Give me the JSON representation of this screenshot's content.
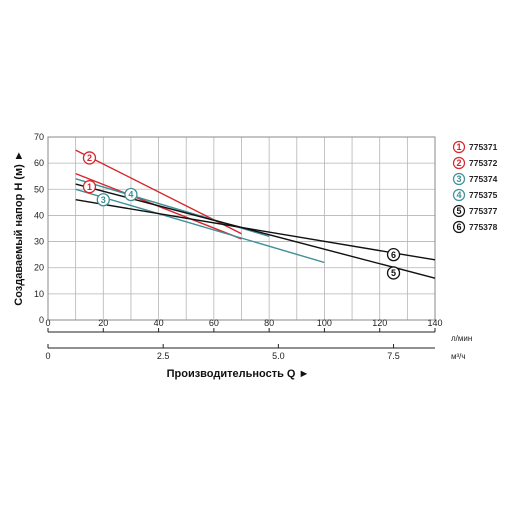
{
  "chart_data": {
    "type": "line",
    "title": "",
    "ylabel": "Создаваемый напор H (м) ►",
    "xlabel": "Производительность Q ►",
    "ylim": [
      0,
      70
    ],
    "xlim": [
      0,
      140
    ],
    "y_ticks": [
      "0",
      "10",
      "20",
      "30",
      "40",
      "50",
      "60",
      "70"
    ],
    "x_ticks_lmin": [
      "0",
      "20",
      "40",
      "60",
      "80",
      "100",
      "120",
      "140"
    ],
    "x_unit_lmin": "л/мин",
    "x_ticks_m3h": [
      "0",
      "2.5",
      "5.0",
      "7.5"
    ],
    "x_unit_m3h": "м³/ч",
    "grid": true,
    "legend_position": "right",
    "series": [
      {
        "name": "775371",
        "marker": "1",
        "color": "#d6262c",
        "x": [
          10,
          70
        ],
        "y": [
          56,
          31
        ],
        "marker_at": [
          15,
          51
        ]
      },
      {
        "name": "775372",
        "marker": "2",
        "color": "#d6262c",
        "x": [
          10,
          70
        ],
        "y": [
          65,
          33
        ],
        "marker_at": [
          15,
          62
        ]
      },
      {
        "name": "775374",
        "marker": "3",
        "color": "#3d8f98",
        "x": [
          10,
          100
        ],
        "y": [
          50,
          22
        ],
        "marker_at": [
          20,
          46
        ]
      },
      {
        "name": "775375",
        "marker": "4",
        "color": "#3d8f98",
        "x": [
          10,
          80
        ],
        "y": [
          54,
          32
        ],
        "marker_at": [
          30,
          48
        ]
      },
      {
        "name": "775377",
        "marker": "5",
        "color": "#111111",
        "x": [
          10,
          140
        ],
        "y": [
          52,
          16
        ],
        "marker_at": [
          125,
          18
        ]
      },
      {
        "name": "775378",
        "marker": "6",
        "color": "#111111",
        "x": [
          10,
          140
        ],
        "y": [
          46,
          23
        ],
        "marker_at": [
          125,
          25
        ]
      }
    ]
  }
}
